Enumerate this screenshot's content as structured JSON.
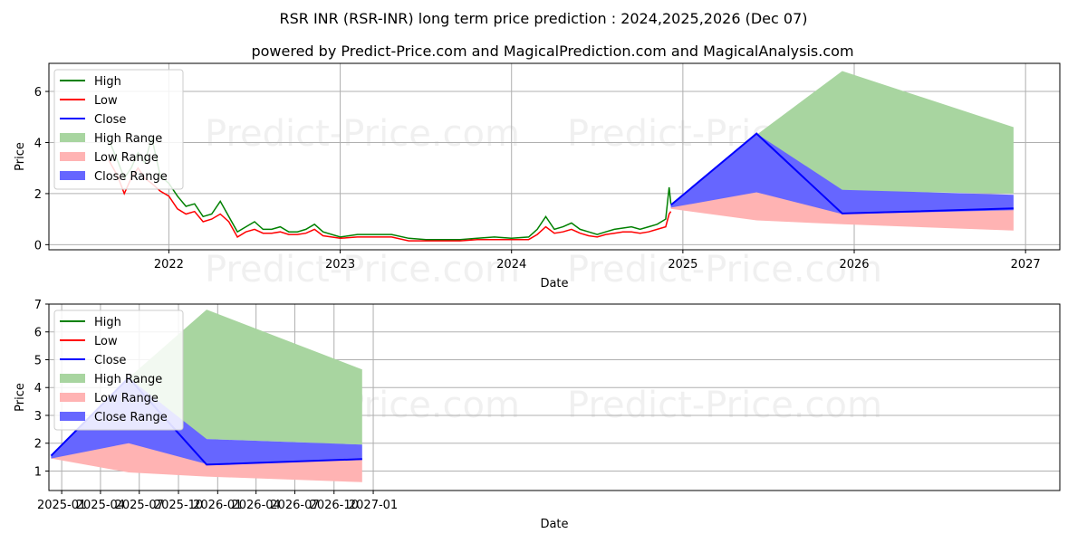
{
  "title": "RSR INR (RSR-INR) long term price prediction : 2024,2025,2026 (Dec 07)",
  "subtitle": "powered by Predict-Price.com and MagicalPrediction.com and MagicalAnalysis.com",
  "watermark": "Predict-Price.com",
  "colors": {
    "high": "#008000",
    "low": "#ff0000",
    "close": "#0000ff",
    "high_range": "#a8d5a0",
    "low_range": "#ffb3b3",
    "close_range": "#6666ff"
  },
  "legend": [
    "High",
    "Low",
    "Close",
    "High Range",
    "Low Range",
    "Close Range"
  ],
  "chart_data": [
    {
      "type": "line",
      "panel": "top",
      "xlabel": "Date",
      "ylabel": "Price",
      "xlim": [
        2021.3,
        2027.2
      ],
      "ylim": [
        -0.2,
        7.1
      ],
      "xticks": [
        2022,
        2023,
        2024,
        2025,
        2026,
        2027
      ],
      "xtick_labels": [
        "2022",
        "2023",
        "2024",
        "2025",
        "2026",
        "2027"
      ],
      "yticks": [
        0,
        2,
        4,
        6
      ],
      "ytick_labels": [
        "0",
        "2",
        "4",
        "6"
      ],
      "history": {
        "x": [
          2021.65,
          2021.7,
          2021.74,
          2021.78,
          2021.82,
          2021.86,
          2021.9,
          2021.95,
          2022.0,
          2022.05,
          2022.1,
          2022.15,
          2022.2,
          2022.25,
          2022.3,
          2022.35,
          2022.4,
          2022.45,
          2022.5,
          2022.55,
          2022.6,
          2022.65,
          2022.7,
          2022.75,
          2022.8,
          2022.85,
          2022.9,
          2023.0,
          2023.1,
          2023.2,
          2023.3,
          2023.4,
          2023.5,
          2023.6,
          2023.7,
          2023.8,
          2023.9,
          2024.0,
          2024.1,
          2024.15,
          2024.2,
          2024.25,
          2024.3,
          2024.35,
          2024.4,
          2024.45,
          2024.5,
          2024.55,
          2024.6,
          2024.65,
          2024.7,
          2024.75,
          2024.8,
          2024.85,
          2024.9,
          2024.92,
          2024.93
        ],
        "high": [
          4.1,
          3.3,
          2.6,
          3.0,
          3.6,
          3.2,
          4.2,
          2.7,
          2.4,
          1.9,
          1.5,
          1.6,
          1.1,
          1.2,
          1.7,
          1.1,
          0.5,
          0.7,
          0.9,
          0.6,
          0.6,
          0.7,
          0.5,
          0.5,
          0.6,
          0.8,
          0.5,
          0.3,
          0.4,
          0.4,
          0.4,
          0.25,
          0.2,
          0.2,
          0.2,
          0.25,
          0.3,
          0.25,
          0.3,
          0.6,
          1.1,
          0.6,
          0.7,
          0.85,
          0.6,
          0.5,
          0.4,
          0.5,
          0.6,
          0.65,
          0.7,
          0.6,
          0.7,
          0.8,
          1.0,
          2.25,
          1.6
        ],
        "low": [
          3.3,
          2.7,
          2.0,
          2.6,
          3.0,
          2.6,
          2.4,
          2.1,
          1.9,
          1.4,
          1.2,
          1.3,
          0.9,
          1.0,
          1.2,
          0.9,
          0.3,
          0.5,
          0.6,
          0.45,
          0.45,
          0.5,
          0.4,
          0.4,
          0.45,
          0.6,
          0.35,
          0.25,
          0.3,
          0.3,
          0.3,
          0.15,
          0.15,
          0.15,
          0.15,
          0.2,
          0.2,
          0.2,
          0.2,
          0.4,
          0.7,
          0.45,
          0.5,
          0.6,
          0.45,
          0.35,
          0.3,
          0.4,
          0.45,
          0.5,
          0.5,
          0.45,
          0.5,
          0.6,
          0.7,
          1.2,
          1.3
        ]
      },
      "forecast": {
        "x": [
          2024.93,
          2025.43,
          2025.93,
          2026.93
        ],
        "high_range_upper": [
          1.6,
          4.3,
          6.8,
          4.6
        ],
        "high_range_lower": [
          1.5,
          2.0,
          2.1,
          2.0
        ],
        "close_range_upper": [
          1.55,
          4.35,
          2.15,
          1.95
        ],
        "close_range_lower": [
          1.45,
          2.05,
          1.2,
          1.35
        ],
        "low_range_upper": [
          1.5,
          2.05,
          1.25,
          1.4
        ],
        "low_range_lower": [
          1.4,
          0.95,
          0.8,
          0.55
        ],
        "close": [
          1.55,
          4.35,
          1.22,
          1.42
        ]
      }
    },
    {
      "type": "line",
      "panel": "bottom",
      "xlabel": "Date",
      "ylabel": "Price",
      "xlim": [
        -30,
        2342
      ],
      "ylim": [
        0.3,
        7.0
      ],
      "xticks": [
        0,
        91,
        182,
        274,
        366,
        456,
        547,
        639,
        731
      ],
      "xtick_labels": [
        "2025-01",
        "2025-04",
        "2025-07",
        "2025-10",
        "2026-01",
        "2026-04",
        "2026-07",
        "2026-10",
        "2027-01"
      ],
      "yticks": [
        1,
        2,
        3,
        4,
        5,
        6,
        7
      ],
      "ytick_labels": [
        "1",
        "2",
        "3",
        "4",
        "5",
        "6",
        "7"
      ],
      "forecast": {
        "x": [
          -25,
          157,
          340,
          705
        ],
        "high_range_upper": [
          1.55,
          4.35,
          6.8,
          4.65
        ],
        "high_range_lower": [
          1.5,
          2.05,
          2.15,
          1.95
        ],
        "close_range_upper": [
          1.55,
          4.35,
          2.15,
          1.95
        ],
        "close_range_lower": [
          1.45,
          2.0,
          1.25,
          1.4
        ],
        "low_range_upper": [
          1.5,
          2.05,
          1.25,
          1.4
        ],
        "low_range_lower": [
          1.45,
          0.95,
          0.8,
          0.6
        ],
        "close": [
          1.55,
          4.35,
          1.23,
          1.43
        ]
      }
    }
  ]
}
